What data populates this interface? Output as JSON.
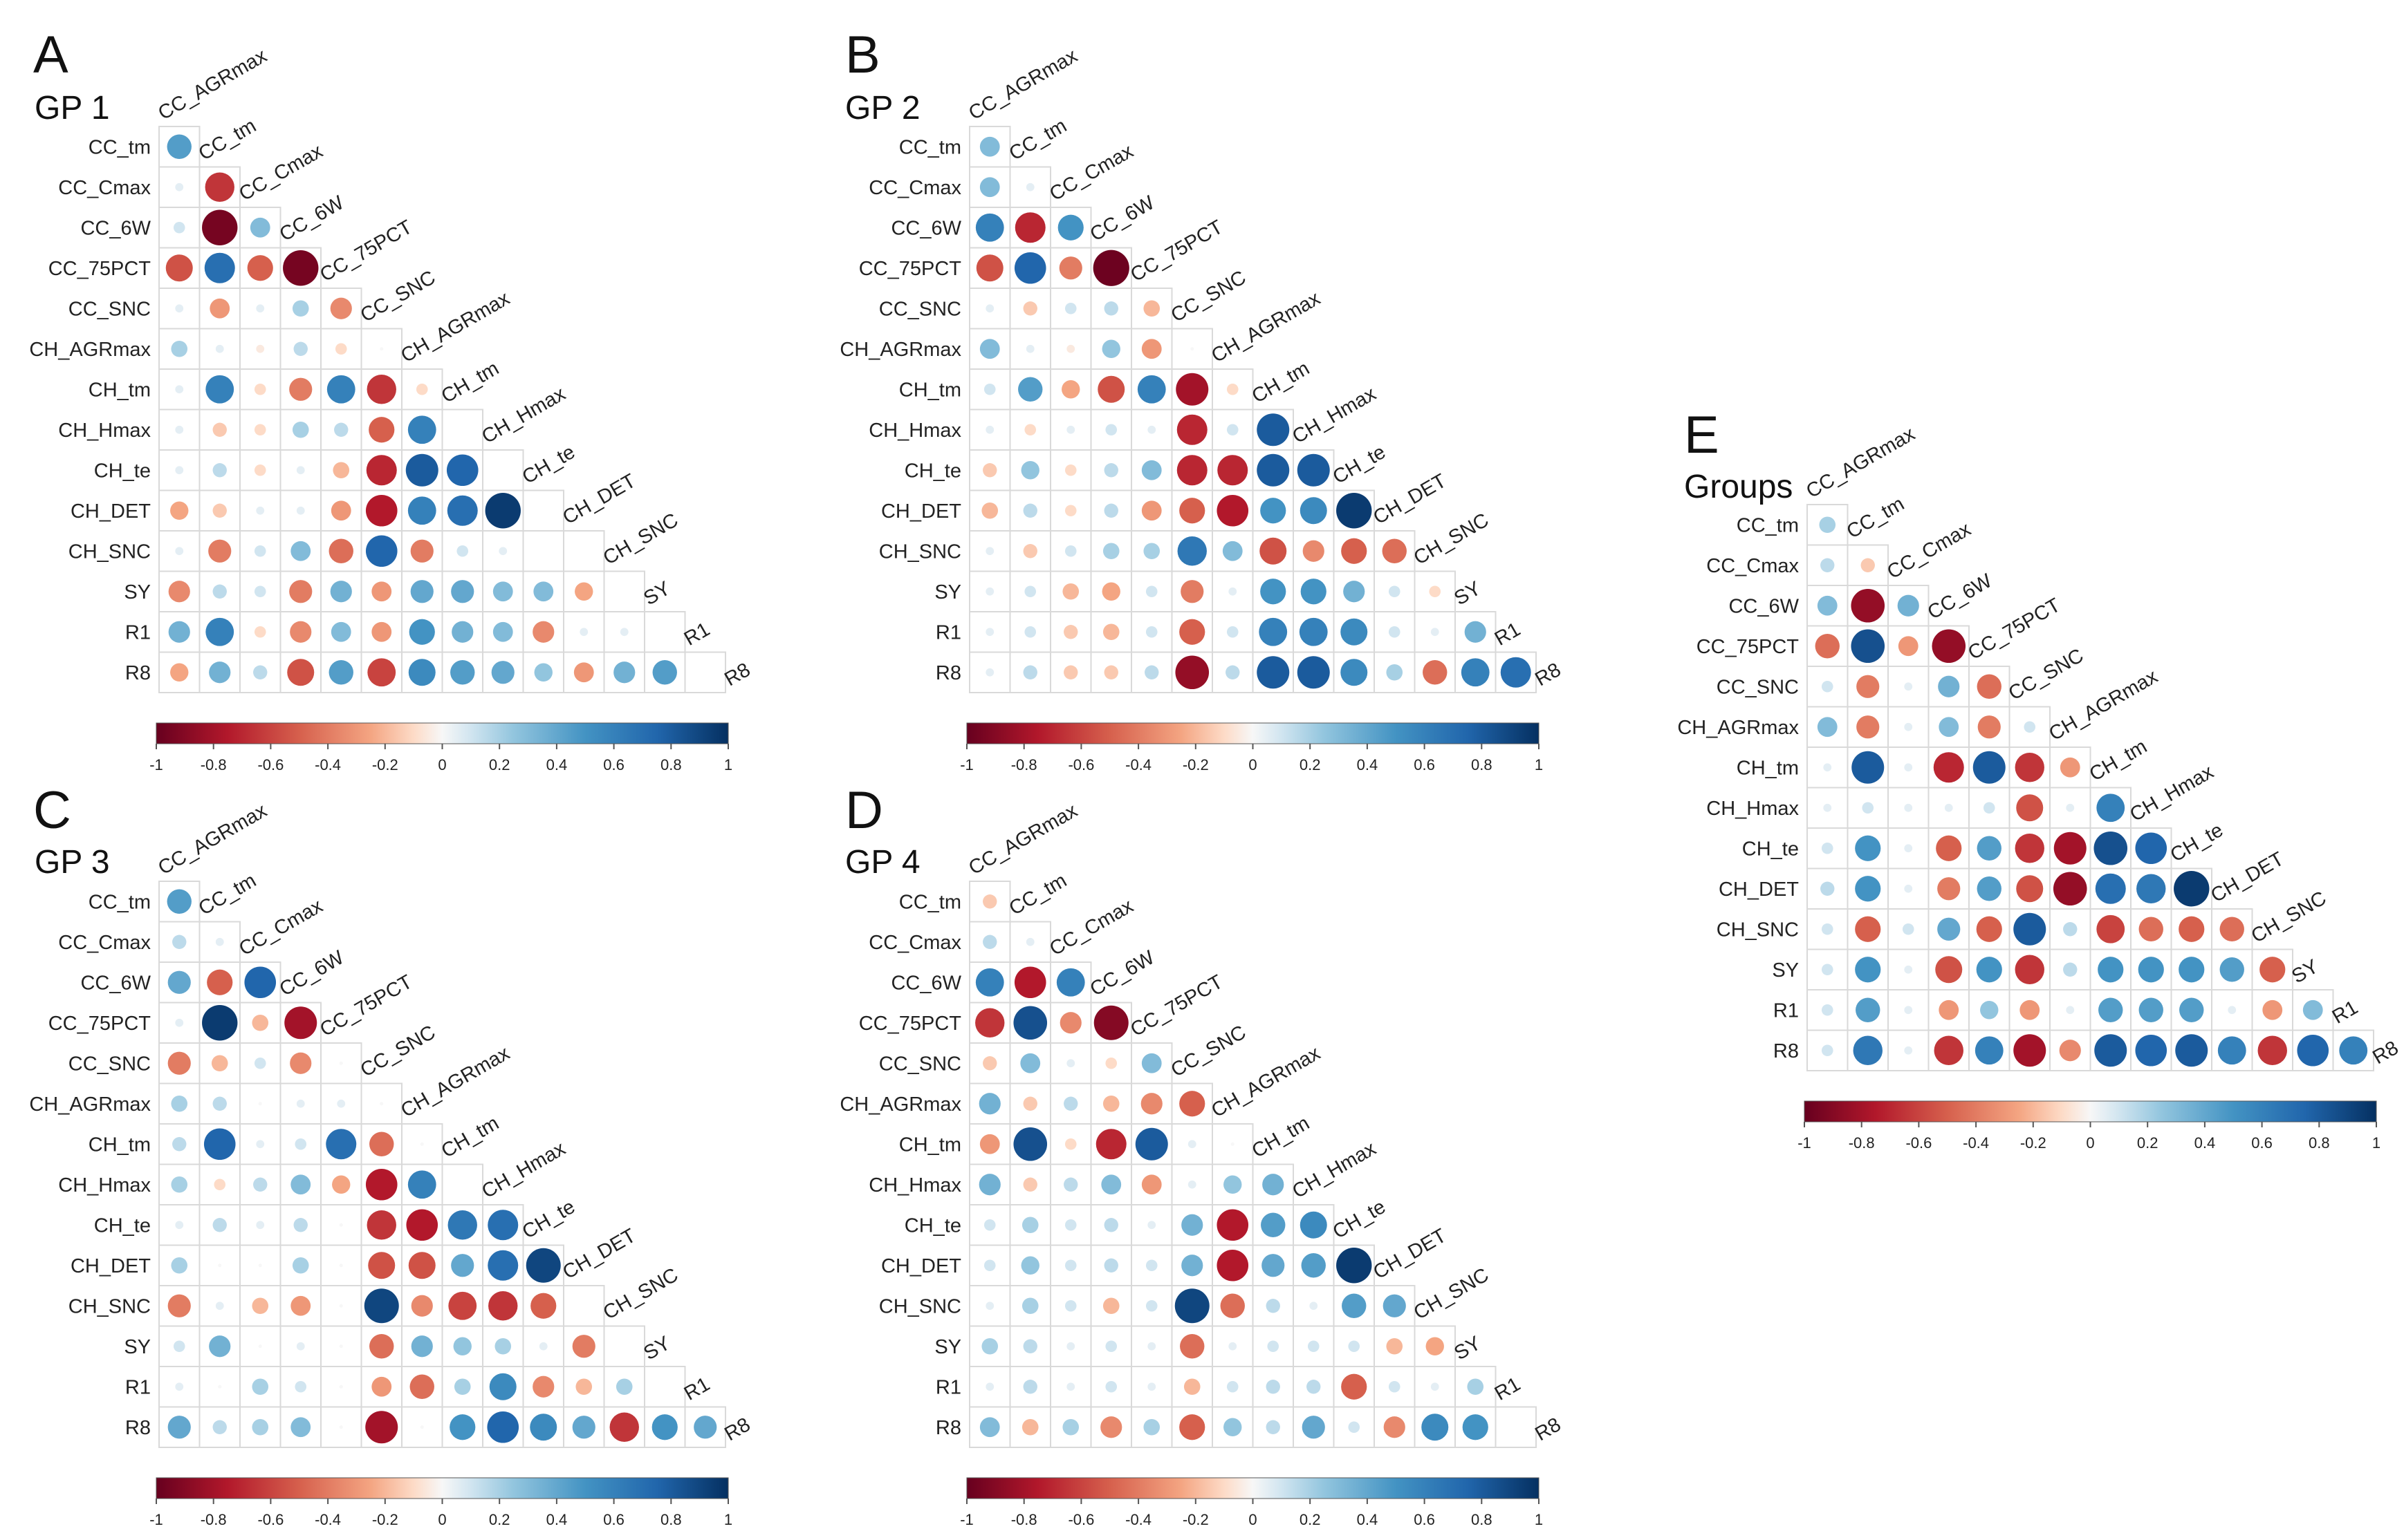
{
  "figure": {
    "description_labels": [
      "A",
      "B",
      "C",
      "D",
      "E"
    ]
  },
  "chart_data": [
    {
      "type": "heatmap",
      "panel": "A",
      "title": "GP 1",
      "variables": [
        "CC_AGRmax",
        "CC_tm",
        "CC_Cmax",
        "CC_6W",
        "CC_75PCT",
        "CC_SNC",
        "CH_AGRmax",
        "CH_tm",
        "CH_Hmax",
        "CH_te",
        "CH_DET",
        "CH_SNC",
        "SY",
        "R1",
        "R8"
      ],
      "row_labels": [
        "CC_tm",
        "CC_Cmax",
        "CC_6W",
        "CC_75PCT",
        "CC_SNC",
        "CH_AGRmax",
        "CH_tm",
        "CH_Hmax",
        "CH_te",
        "CH_DET",
        "CH_SNC",
        "SY",
        "R1",
        "R8"
      ],
      "colorbar_ticks": [
        "-1",
        "-0.8",
        "-0.6",
        "-0.4",
        "-0.2",
        "0",
        "0.2",
        "0.4",
        "0.6",
        "0.8",
        "1"
      ],
      "colorbar_range": [
        -1,
        1
      ],
      "values": [
        [
          0.45
        ],
        [
          0.05,
          -0.65
        ],
        [
          0.1,
          -0.95,
          0.3
        ],
        [
          -0.55,
          0.7,
          -0.5,
          -0.95
        ],
        [
          0.05,
          -0.3,
          0.05,
          0.2,
          -0.35
        ],
        [
          0.2,
          0.05,
          -0.05,
          0.15,
          -0.1,
          0
        ],
        [
          0.05,
          0.6,
          -0.1,
          -0.4,
          0.6,
          -0.65,
          -0.1
        ],
        [
          0.05,
          -0.15,
          -0.1,
          0.2,
          0.15,
          -0.5,
          0.6
        ],
        [
          0.05,
          0.15,
          -0.1,
          0.05,
          -0.2,
          -0.7,
          0.8,
          0.75
        ],
        [
          -0.25,
          -0.15,
          0.05,
          0.05,
          -0.3,
          -0.75,
          0.6,
          0.7,
          0.95
        ],
        [
          0.05,
          -0.4,
          0.1,
          0.3,
          -0.45,
          0.75,
          -0.4,
          0.1,
          0.05
        ],
        [
          -0.35,
          0.15,
          0.1,
          -0.4,
          0.35,
          -0.3,
          0.4,
          0.4,
          0.3,
          0.3,
          -0.25
        ],
        [
          0.35,
          0.6,
          -0.1,
          -0.35,
          0.3,
          -0.3,
          0.5,
          0.35,
          0.3,
          -0.35,
          0.05,
          0.05
        ],
        [
          -0.25,
          0.35,
          0.15,
          -0.55,
          0.45,
          -0.6,
          0.55,
          0.45,
          0.4,
          0.25,
          -0.3,
          0.35,
          0.45
        ]
      ]
    },
    {
      "type": "heatmap",
      "panel": "B",
      "title": "GP 2",
      "variables": [
        "CC_AGRmax",
        "CC_tm",
        "CC_Cmax",
        "CC_6W",
        "CC_75PCT",
        "CC_SNC",
        "CH_AGRmax",
        "CH_tm",
        "CH_Hmax",
        "CH_te",
        "CH_DET",
        "CH_SNC",
        "SY",
        "R1",
        "R8"
      ],
      "row_labels": [
        "CC_tm",
        "CC_Cmax",
        "CC_6W",
        "CC_75PCT",
        "CC_SNC",
        "CH_AGRmax",
        "CH_tm",
        "CH_Hmax",
        "CH_te",
        "CH_DET",
        "CH_SNC",
        "SY",
        "R1",
        "R8"
      ],
      "colorbar_ticks": [
        "-1",
        "-0.8",
        "-0.6",
        "-0.4",
        "-0.2",
        "0",
        "0.2",
        "0.4",
        "0.6",
        "0.8",
        "1"
      ],
      "colorbar_range": [
        -1,
        1
      ],
      "values": [
        [
          0.3
        ],
        [
          0.3,
          0.05
        ],
        [
          0.6,
          -0.7,
          0.5
        ],
        [
          -0.55,
          0.75,
          -0.4,
          -0.98
        ],
        [
          0.05,
          -0.15,
          0.1,
          0.15,
          -0.2
        ],
        [
          0.3,
          0.05,
          -0.05,
          0.25,
          -0.3,
          0
        ],
        [
          0.1,
          0.45,
          -0.25,
          -0.55,
          0.6,
          -0.8,
          -0.1
        ],
        [
          0.05,
          -0.1,
          0.05,
          0.1,
          0.05,
          -0.7,
          0.1,
          0.8
        ],
        [
          -0.15,
          0.25,
          -0.1,
          0.15,
          0.3,
          -0.7,
          -0.7,
          0.8,
          0.8
        ],
        [
          -0.2,
          0.15,
          -0.1,
          0.15,
          -0.3,
          -0.5,
          -0.75,
          0.5,
          0.55,
          0.95
        ],
        [
          0.05,
          -0.15,
          0.1,
          0.2,
          0.2,
          0.65,
          0.3,
          -0.55,
          -0.35,
          -0.5,
          -0.45
        ],
        [
          0.05,
          0.1,
          -0.2,
          -0.25,
          0.1,
          -0.4,
          0.05,
          0.5,
          0.5,
          0.35,
          0.1,
          -0.1
        ],
        [
          0.05,
          0.1,
          -0.15,
          -0.2,
          0.1,
          -0.5,
          0.1,
          0.6,
          0.6,
          0.55,
          0.1,
          0.05,
          0.35
        ],
        [
          0.05,
          0.15,
          -0.15,
          -0.15,
          0.15,
          -0.85,
          0.15,
          0.8,
          0.8,
          0.55,
          0.2,
          -0.45,
          0.6,
          0.7
        ]
      ]
    },
    {
      "type": "heatmap",
      "panel": "C",
      "title": "GP 3",
      "variables": [
        "CC_AGRmax",
        "CC_tm",
        "CC_Cmax",
        "CC_6W",
        "CC_75PCT",
        "CC_SNC",
        "CH_AGRmax",
        "CH_tm",
        "CH_Hmax",
        "CH_te",
        "CH_DET",
        "CH_SNC",
        "SY",
        "R1",
        "R8"
      ],
      "row_labels": [
        "CC_tm",
        "CC_Cmax",
        "CC_6W",
        "CC_75PCT",
        "CC_SNC",
        "CH_AGRmax",
        "CH_tm",
        "CH_Hmax",
        "CH_te",
        "CH_DET",
        "CH_SNC",
        "SY",
        "R1",
        "R8"
      ],
      "colorbar_ticks": [
        "-1",
        "-0.8",
        "-0.6",
        "-0.4",
        "-0.2",
        "0",
        "0.2",
        "0.4",
        "0.6",
        "0.8",
        "1"
      ],
      "colorbar_range": [
        -1,
        1
      ],
      "values": [
        [
          0.45
        ],
        [
          0.15,
          0.05
        ],
        [
          0.4,
          -0.5,
          0.75
        ],
        [
          0.05,
          0.95,
          -0.2,
          -0.8
        ],
        [
          -0.4,
          -0.2,
          0.1,
          -0.35,
          0
        ],
        [
          0.2,
          0.15,
          0,
          0.05,
          0.05,
          0
        ],
        [
          0.15,
          0.75,
          0.05,
          0.1,
          0.7,
          -0.45,
          0
        ],
        [
          0.2,
          -0.1,
          0.15,
          0.3,
          -0.25,
          -0.75,
          0.6
        ],
        [
          0.05,
          0.15,
          0.05,
          0.15,
          0,
          -0.65,
          -0.75,
          0.65,
          0.7
        ],
        [
          0.2,
          0,
          0,
          0.2,
          0,
          -0.55,
          -0.55,
          0.4,
          0.7,
          0.9
        ],
        [
          -0.4,
          0.05,
          -0.2,
          -0.3,
          0,
          0.9,
          -0.35,
          -0.6,
          -0.65,
          -0.5
        ],
        [
          0.1,
          0.35,
          0,
          0.05,
          0,
          -0.45,
          0.35,
          0.25,
          0.2,
          0.05,
          -0.4
        ],
        [
          0.05,
          0,
          0.2,
          0.1,
          0,
          -0.3,
          -0.45,
          0.2,
          0.55,
          -0.35,
          -0.2,
          0.2
        ],
        [
          0.4,
          0.15,
          0.2,
          0.3,
          0,
          -0.8,
          0,
          0.5,
          0.75,
          0.55,
          0.4,
          -0.65,
          0.5,
          0.4
        ]
      ]
    },
    {
      "type": "heatmap",
      "panel": "D",
      "title": "GP 4",
      "variables": [
        "CC_AGRmax",
        "CC_tm",
        "CC_Cmax",
        "CC_6W",
        "CC_75PCT",
        "CC_SNC",
        "CH_AGRmax",
        "CH_tm",
        "CH_Hmax",
        "CH_te",
        "CH_DET",
        "CH_SNC",
        "SY",
        "R1",
        "R8"
      ],
      "row_labels": [
        "CC_tm",
        "CC_Cmax",
        "CC_6W",
        "CC_75PCT",
        "CC_SNC",
        "CH_AGRmax",
        "CH_tm",
        "CH_Hmax",
        "CH_te",
        "CH_DET",
        "CH_SNC",
        "SY",
        "R1",
        "R8"
      ],
      "colorbar_ticks": [
        "-1",
        "-0.8",
        "-0.6",
        "-0.4",
        "-0.2",
        "0",
        "0.2",
        "0.4",
        "0.6",
        "0.8",
        "1"
      ],
      "colorbar_range": [
        -1,
        1
      ],
      "values": [
        [
          -0.15
        ],
        [
          0.15,
          0.05
        ],
        [
          0.6,
          -0.75,
          0.6
        ],
        [
          -0.65,
          0.85,
          -0.35,
          -0.9
        ],
        [
          -0.15,
          0.3,
          0.05,
          -0.1,
          0.3
        ],
        [
          0.35,
          -0.15,
          0.15,
          -0.2,
          -0.35,
          -0.5
        ],
        [
          -0.3,
          0.85,
          -0.1,
          -0.7,
          0.8,
          0.05,
          0
        ],
        [
          0.35,
          -0.15,
          0.15,
          0.3,
          -0.3,
          0.05,
          0.25,
          0.35
        ],
        [
          0.1,
          0.2,
          0.1,
          0.15,
          0.05,
          0.35,
          -0.75,
          0.45,
          0.55
        ],
        [
          0.1,
          0.25,
          0.1,
          0.15,
          0.1,
          0.35,
          -0.75,
          0.4,
          0.45,
          0.95
        ],
        [
          0.05,
          0.2,
          0.1,
          -0.2,
          0.1,
          0.9,
          -0.45,
          0.15,
          0.05,
          0.45,
          0.4
        ],
        [
          0.2,
          0.15,
          0.05,
          0.1,
          0.05,
          -0.45,
          0.05,
          0.1,
          0.1,
          0.1,
          -0.2,
          -0.25
        ],
        [
          0.05,
          0.15,
          0.05,
          0.1,
          0.05,
          -0.2,
          0.1,
          0.15,
          0.15,
          -0.5,
          0.1,
          0.05,
          0.2
        ],
        [
          0.3,
          -0.2,
          0.2,
          -0.35,
          0.2,
          -0.5,
          0.25,
          0.15,
          0.4,
          0.1,
          -0.35,
          0.55,
          0.5
        ]
      ]
    },
    {
      "type": "heatmap",
      "panel": "E",
      "title": "Groups",
      "variables": [
        "CC_AGRmax",
        "CC_tm",
        "CC_Cmax",
        "CC_6W",
        "CC_75PCT",
        "CC_SNC",
        "CH_AGRmax",
        "CH_tm",
        "CH_Hmax",
        "CH_te",
        "CH_DET",
        "CH_SNC",
        "SY",
        "R1",
        "R8"
      ],
      "row_labels": [
        "CC_tm",
        "CC_Cmax",
        "CC_6W",
        "CC_75PCT",
        "CC_SNC",
        "CH_AGRmax",
        "CH_tm",
        "CH_Hmax",
        "CH_te",
        "CH_DET",
        "CH_SNC",
        "SY",
        "R1",
        "R8"
      ],
      "colorbar_ticks": [
        "-1",
        "-0.8",
        "-0.6",
        "-0.4",
        "-0.2",
        "0",
        "0.2",
        "0.4",
        "0.6",
        "0.8",
        "1"
      ],
      "colorbar_range": [
        -1,
        1
      ],
      "values": [
        [
          0.2
        ],
        [
          0.15,
          -0.15
        ],
        [
          0.3,
          -0.85,
          0.35
        ],
        [
          -0.45,
          0.85,
          -0.3,
          -0.85
        ],
        [
          0.1,
          -0.4,
          0.05,
          0.35,
          -0.45
        ],
        [
          0.3,
          -0.4,
          0.05,
          0.3,
          -0.4,
          0.1
        ],
        [
          0.05,
          0.8,
          0.05,
          -0.7,
          0.8,
          -0.65,
          -0.3
        ],
        [
          0.05,
          0.1,
          0.05,
          0.05,
          0.1,
          -0.55,
          0.05,
          0.6
        ],
        [
          0.1,
          0.5,
          0.05,
          -0.5,
          0.45,
          -0.65,
          -0.8,
          0.85,
          0.75
        ],
        [
          0.15,
          0.5,
          0.05,
          -0.4,
          0.45,
          -0.55,
          -0.85,
          0.7,
          0.65,
          0.95
        ],
        [
          0.1,
          -0.5,
          0.1,
          0.4,
          -0.5,
          0.8,
          0.15,
          -0.6,
          -0.45,
          -0.5,
          -0.45
        ],
        [
          0.1,
          0.5,
          0.05,
          -0.55,
          0.5,
          -0.65,
          0.15,
          0.5,
          0.5,
          0.5,
          0.45,
          -0.5
        ],
        [
          0.1,
          0.45,
          0.05,
          -0.3,
          0.25,
          -0.3,
          0.05,
          0.45,
          0.45,
          0.45,
          0.05,
          -0.3,
          0.3
        ],
        [
          0.1,
          0.65,
          0.05,
          -0.65,
          0.6,
          -0.8,
          -0.35,
          0.8,
          0.75,
          0.8,
          0.6,
          -0.65,
          0.75,
          0.6
        ]
      ]
    }
  ]
}
